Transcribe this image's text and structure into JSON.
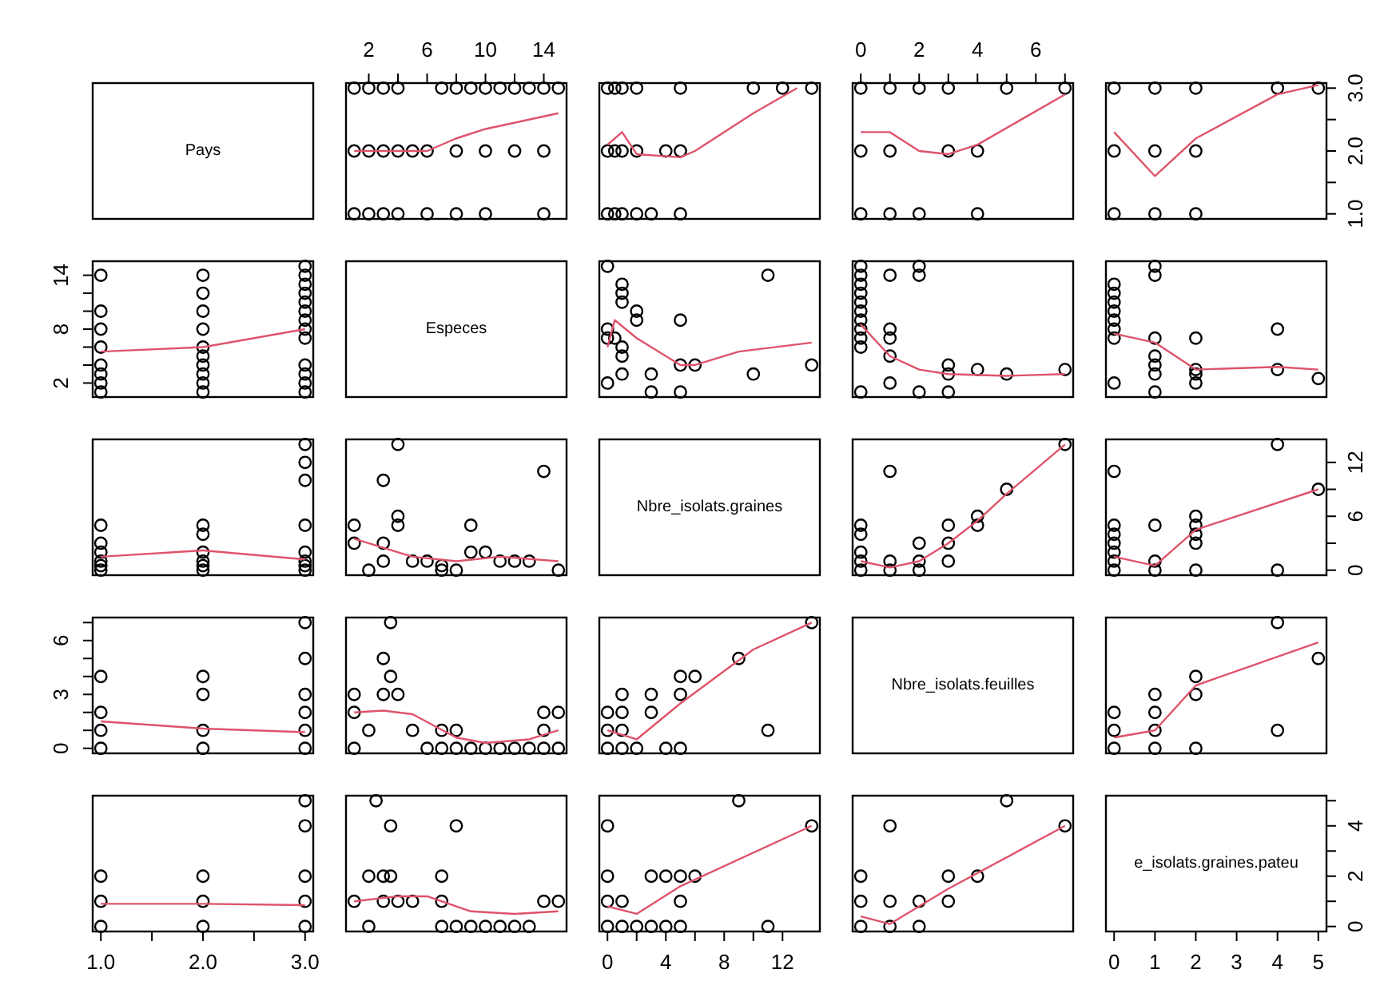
{
  "chart_data": [
    {
      "type": "other",
      "title": "Pays"
    },
    {
      "type": "scatter",
      "xlim": [
        0.44,
        15.56
      ],
      "ylim": [
        0.92,
        3.08
      ],
      "tick_labels": "x",
      "xticks": [
        2,
        {
          "value": 4,
          "label": null
        },
        6,
        {
          "value": 8,
          "label": null
        },
        10,
        {
          "value": 12,
          "label": null
        },
        14
      ],
      "series": [
        {
          "type": "scatter",
          "marker": "circle",
          "color": "#000000",
          "x": [
            1,
            2,
            3,
            4,
            7,
            8,
            9,
            10,
            11,
            12,
            13,
            14,
            15,
            1,
            2,
            3,
            4,
            5,
            6,
            8,
            10,
            12,
            14,
            1,
            2,
            3,
            4,
            6,
            8,
            10,
            14
          ],
          "values": [
            3,
            3,
            3,
            3,
            3,
            3,
            3,
            3,
            3,
            3,
            3,
            3,
            3,
            2,
            2,
            2,
            2,
            2,
            2,
            2,
            2,
            2,
            2,
            1,
            1,
            1,
            1,
            1,
            1,
            1,
            1
          ]
        },
        {
          "type": "line",
          "color": "#df536b",
          "x": [
            1,
            6,
            8,
            10,
            15
          ],
          "values": [
            2.0,
            2.0,
            2.2,
            2.35,
            2.6
          ]
        }
      ]
    },
    {
      "type": "scatter",
      "xlim": [
        -0.56,
        14.56
      ],
      "ylim": [
        0.92,
        3.08
      ],
      "tick_labels": false,
      "series": [
        {
          "type": "scatter",
          "marker": "circle",
          "color": "#000000",
          "x": [
            0,
            0.5,
            1,
            2,
            5,
            10,
            12,
            14,
            0,
            0.5,
            1,
            2,
            4,
            5,
            0,
            0.5,
            1,
            2,
            3,
            5
          ],
          "values": [
            3,
            3,
            3,
            3,
            3,
            3,
            3,
            3,
            2,
            2,
            2,
            2,
            2,
            2,
            1,
            1,
            1,
            1,
            1,
            1
          ]
        },
        {
          "type": "line",
          "color": "#df536b",
          "x": [
            0,
            1,
            2,
            5,
            6,
            10,
            13
          ],
          "values": [
            2.1,
            2.3,
            1.95,
            1.9,
            2.0,
            2.6,
            3.0
          ]
        }
      ]
    },
    {
      "type": "scatter",
      "xlim": [
        -0.28,
        7.28
      ],
      "ylim": [
        0.92,
        3.08
      ],
      "tick_labels": "x",
      "xticks": [
        0,
        {
          "value": 1,
          "label": null
        },
        2,
        {
          "value": 3,
          "label": null
        },
        4,
        {
          "value": 5,
          "label": null
        },
        6,
        {
          "value": 7,
          "label": null
        }
      ],
      "series": [
        {
          "type": "scatter",
          "marker": "circle",
          "color": "#000000",
          "x": [
            0,
            1,
            2,
            3,
            5,
            7,
            0,
            1,
            3,
            4,
            0,
            1,
            2,
            4
          ],
          "values": [
            3,
            3,
            3,
            3,
            3,
            3,
            2,
            2,
            2,
            2,
            1,
            1,
            1,
            1
          ]
        },
        {
          "type": "line",
          "color": "#df536b",
          "x": [
            0,
            1,
            2,
            3,
            4,
            7
          ],
          "values": [
            2.3,
            2.3,
            2.0,
            1.95,
            2.1,
            2.9
          ]
        }
      ]
    },
    {
      "type": "scatter",
      "xlim": [
        -0.2,
        5.2
      ],
      "ylim": [
        0.92,
        3.08
      ],
      "tick_labels": "y",
      "yticks": [
        {
          "value": 1,
          "label": "1.0"
        },
        {
          "value": 1.5,
          "label": null
        },
        {
          "value": 2,
          "label": "2.0"
        },
        {
          "value": 2.5,
          "label": null
        },
        {
          "value": 3,
          "label": "3.0"
        }
      ],
      "series": [
        {
          "type": "scatter",
          "marker": "circle",
          "color": "#000000",
          "x": [
            0,
            1,
            2,
            4,
            5,
            0,
            1,
            2,
            0,
            1,
            2
          ],
          "values": [
            3,
            3,
            3,
            3,
            3,
            2,
            2,
            2,
            1,
            1,
            1
          ]
        },
        {
          "type": "line",
          "color": "#df536b",
          "x": [
            0,
            1,
            2,
            4,
            5
          ],
          "values": [
            2.3,
            1.6,
            2.2,
            2.9,
            3.05
          ]
        }
      ]
    },
    {
      "type": "scatter",
      "xlim": [
        0.92,
        3.08
      ],
      "ylim": [
        0.44,
        15.56
      ],
      "tick_labels": "y",
      "yticks": [
        2,
        {
          "value": 4,
          "label": null
        },
        {
          "value": 6,
          "label": null
        },
        8,
        {
          "value": 10,
          "label": null
        },
        {
          "value": 12,
          "label": null
        },
        14
      ],
      "series": [
        {
          "type": "scatter",
          "marker": "circle",
          "color": "#000000",
          "x": [
            3,
            3,
            3,
            3,
            3,
            3,
            3,
            3,
            3,
            3,
            3,
            3,
            3,
            2,
            2,
            2,
            2,
            2,
            2,
            2,
            2,
            2,
            2,
            1,
            1,
            1,
            1,
            1,
            1,
            1,
            1
          ],
          "values": [
            1,
            2,
            3,
            4,
            7,
            8,
            9,
            10,
            11,
            12,
            13,
            14,
            15,
            1,
            2,
            3,
            4,
            5,
            6,
            8,
            10,
            12,
            14,
            1,
            2,
            3,
            4,
            6,
            8,
            10,
            14
          ]
        },
        {
          "type": "line",
          "color": "#df536b",
          "x": [
            1,
            2,
            3
          ],
          "values": [
            5.5,
            6,
            8
          ]
        }
      ]
    },
    {
      "type": "other",
      "title": "Especes"
    },
    {
      "type": "scatter",
      "xlim": [
        -0.56,
        14.56
      ],
      "ylim": [
        0.44,
        15.56
      ],
      "tick_labels": false,
      "series": [
        {
          "type": "scatter",
          "marker": "circle",
          "color": "#000000",
          "x": [
            0,
            0,
            0,
            0,
            0.5,
            1,
            1,
            1,
            1,
            1,
            1,
            2,
            2,
            3,
            3,
            5,
            5,
            5,
            6,
            10,
            11,
            14
          ],
          "values": [
            15,
            8,
            7,
            2,
            7,
            12,
            13,
            11,
            6,
            5,
            3,
            9,
            10,
            1,
            3,
            9,
            4,
            1,
            4,
            3,
            14,
            4
          ]
        },
        {
          "type": "line",
          "color": "#df536b",
          "x": [
            0,
            0.5,
            2,
            5,
            6,
            9,
            14
          ],
          "values": [
            6,
            9,
            7,
            4,
            4,
            5.5,
            6.5
          ]
        }
      ]
    },
    {
      "type": "scatter",
      "xlim": [
        -0.28,
        7.28
      ],
      "ylim": [
        0.44,
        15.56
      ],
      "tick_labels": false,
      "series": [
        {
          "type": "scatter",
          "marker": "circle",
          "color": "#000000",
          "x": [
            0,
            0,
            0,
            0,
            0,
            0,
            0,
            0,
            0,
            0,
            0,
            1,
            1,
            1,
            1,
            1,
            2,
            2,
            2,
            3,
            3,
            3,
            4,
            5,
            7
          ],
          "values": [
            15,
            14,
            13,
            12,
            11,
            10,
            9,
            8,
            7,
            6,
            1,
            14,
            8,
            7,
            5,
            2,
            15,
            14,
            1,
            4,
            3,
            1,
            3.5,
            3,
            3.5
          ]
        },
        {
          "type": "line",
          "color": "#df536b",
          "x": [
            0,
            1,
            2,
            3,
            5,
            7
          ],
          "values": [
            8.5,
            5,
            3.5,
            3,
            2.8,
            3
          ]
        }
      ]
    },
    {
      "type": "scatter",
      "xlim": [
        -0.2,
        5.2
      ],
      "ylim": [
        0.44,
        15.56
      ],
      "tick_labels": false,
      "series": [
        {
          "type": "scatter",
          "marker": "circle",
          "color": "#000000",
          "x": [
            0,
            0,
            0,
            0,
            0,
            0,
            0,
            0,
            1,
            1,
            1,
            1,
            1,
            1,
            1,
            2,
            2,
            2,
            2,
            4,
            4,
            5
          ],
          "values": [
            13,
            12,
            11,
            10,
            9,
            8,
            7,
            2,
            15,
            14,
            7,
            5,
            4,
            3,
            1,
            7,
            3.5,
            3,
            2,
            8,
            3.5,
            2.5
          ]
        },
        {
          "type": "line",
          "color": "#df536b",
          "x": [
            0,
            1,
            2,
            4,
            5
          ],
          "values": [
            7.5,
            6.5,
            3.5,
            3.8,
            3.5
          ]
        }
      ]
    },
    {
      "type": "scatter",
      "xlim": [
        0.92,
        3.08
      ],
      "ylim": [
        -0.56,
        14.56
      ],
      "tick_labels": false,
      "series": [
        {
          "type": "scatter",
          "marker": "circle",
          "color": "#000000",
          "x": [
            3,
            3,
            3,
            3,
            3,
            3,
            3,
            3,
            2,
            2,
            2,
            2,
            2,
            2,
            1,
            1,
            1,
            1,
            1,
            1
          ],
          "values": [
            0,
            0.5,
            1,
            2,
            5,
            10,
            12,
            14,
            0,
            0.5,
            1,
            2,
            4,
            5,
            0,
            0.5,
            1,
            2,
            3,
            5
          ]
        },
        {
          "type": "line",
          "color": "#df536b",
          "x": [
            1,
            2,
            3
          ],
          "values": [
            1.5,
            2.2,
            1.2
          ]
        }
      ]
    },
    {
      "type": "scatter",
      "xlim": [
        0.44,
        15.56
      ],
      "ylim": [
        -0.56,
        14.56
      ],
      "tick_labels": false,
      "series": [
        {
          "type": "scatter",
          "marker": "circle",
          "color": "#000000",
          "x": [
            15,
            8,
            7,
            2,
            7,
            12,
            13,
            11,
            6,
            5,
            3,
            9,
            10,
            1,
            3,
            9,
            4,
            1,
            4,
            3,
            14,
            4
          ],
          "values": [
            0,
            0,
            0,
            0,
            0.5,
            1,
            1,
            1,
            1,
            1,
            1,
            2,
            2,
            3,
            3,
            5,
            5,
            5,
            6,
            10,
            11,
            14
          ]
        },
        {
          "type": "line",
          "color": "#df536b",
          "x": [
            1,
            3,
            5,
            8,
            11,
            15
          ],
          "values": [
            3.5,
            2.5,
            1.5,
            1,
            1.5,
            1
          ]
        }
      ]
    },
    {
      "type": "other",
      "title": "Nbre_isolats.graines"
    },
    {
      "type": "scatter",
      "xlim": [
        -0.28,
        7.28
      ],
      "ylim": [
        -0.56,
        14.56
      ],
      "tick_labels": false,
      "series": [
        {
          "type": "scatter",
          "marker": "circle",
          "color": "#000000",
          "x": [
            0,
            0,
            0,
            0,
            0,
            1,
            1,
            1,
            2,
            2,
            2,
            3,
            3,
            3,
            4,
            4,
            5,
            7
          ],
          "values": [
            5,
            4,
            2,
            1,
            0,
            11,
            1,
            0,
            3,
            1,
            0,
            5,
            3,
            1,
            6,
            5,
            9,
            14
          ]
        },
        {
          "type": "line",
          "color": "#df536b",
          "x": [
            0,
            1,
            2,
            3,
            4,
            5,
            7
          ],
          "values": [
            1,
            0.3,
            1,
            3,
            5.5,
            8.5,
            14
          ]
        }
      ]
    },
    {
      "type": "scatter",
      "xlim": [
        -0.2,
        5.2
      ],
      "ylim": [
        -0.56,
        14.56
      ],
      "tick_labels": "y",
      "yticks": [
        0,
        {
          "value": 3,
          "label": null
        },
        6,
        {
          "value": 9,
          "label": null
        },
        12
      ],
      "series": [
        {
          "type": "scatter",
          "marker": "circle",
          "color": "#000000",
          "x": [
            0,
            0,
            0,
            0,
            0,
            0,
            0,
            1,
            1,
            1,
            2,
            2,
            2,
            2,
            2,
            4,
            4,
            5
          ],
          "values": [
            11,
            5,
            4,
            3,
            2,
            1,
            0,
            5,
            1,
            0,
            6,
            5,
            4,
            3,
            0,
            14,
            0,
            9
          ]
        },
        {
          "type": "line",
          "color": "#df536b",
          "x": [
            0,
            1,
            2,
            5
          ],
          "values": [
            1.5,
            0.5,
            4.5,
            9
          ]
        }
      ]
    },
    {
      "type": "scatter",
      "xlim": [
        0.92,
        3.08
      ],
      "ylim": [
        -0.28,
        7.28
      ],
      "tick_labels": "y",
      "yticks": [
        0,
        {
          "value": 1,
          "label": null
        },
        {
          "value": 2,
          "label": null
        },
        3,
        {
          "value": 4,
          "label": null
        },
        {
          "value": 5,
          "label": null
        },
        6,
        {
          "value": 7,
          "label": null
        }
      ],
      "series": [
        {
          "type": "scatter",
          "marker": "circle",
          "color": "#000000",
          "x": [
            3,
            3,
            3,
            3,
            3,
            3,
            2,
            2,
            2,
            2,
            1,
            1,
            1,
            1
          ],
          "values": [
            0,
            1,
            2,
            3,
            5,
            7,
            0,
            1,
            3,
            4,
            0,
            1,
            2,
            4
          ]
        },
        {
          "type": "line",
          "color": "#df536b",
          "x": [
            1,
            2,
            3
          ],
          "values": [
            1.5,
            1.1,
            0.9
          ]
        }
      ]
    },
    {
      "type": "scatter",
      "xlim": [
        0.44,
        15.56
      ],
      "ylim": [
        -0.28,
        7.28
      ],
      "tick_labels": false,
      "series": [
        {
          "type": "scatter",
          "marker": "circle",
          "color": "#000000",
          "x": [
            15,
            14,
            13,
            12,
            11,
            10,
            9,
            8,
            7,
            6,
            1,
            14,
            8,
            7,
            5,
            2,
            15,
            14,
            1,
            4,
            3,
            1,
            3.5,
            3,
            3.5
          ],
          "values": [
            0,
            0,
            0,
            0,
            0,
            0,
            0,
            0,
            0,
            0,
            0,
            1,
            1,
            1,
            1,
            1,
            2,
            2,
            2,
            3,
            3,
            3,
            4,
            5,
            7
          ]
        },
        {
          "type": "line",
          "color": "#df536b",
          "x": [
            1,
            3,
            5,
            8,
            10,
            13,
            15
          ],
          "values": [
            2,
            2.1,
            1.9,
            0.6,
            0.3,
            0.5,
            1
          ]
        }
      ]
    },
    {
      "type": "scatter",
      "xlim": [
        -0.56,
        14.56
      ],
      "ylim": [
        -0.28,
        7.28
      ],
      "tick_labels": false,
      "series": [
        {
          "type": "scatter",
          "marker": "circle",
          "color": "#000000",
          "x": [
            5,
            4,
            2,
            1,
            0,
            11,
            1,
            0,
            3,
            1,
            0,
            5,
            3,
            1,
            6,
            5,
            9,
            14
          ],
          "values": [
            0,
            0,
            0,
            0,
            0,
            1,
            1,
            1,
            2,
            2,
            2,
            3,
            3,
            3,
            4,
            4,
            5,
            7
          ]
        },
        {
          "type": "line",
          "color": "#df536b",
          "x": [
            0,
            2,
            5,
            10,
            14
          ],
          "values": [
            1,
            0.5,
            2.5,
            5.5,
            7
          ]
        }
      ]
    },
    {
      "type": "other",
      "title": "Nbre_isolats.feuilles"
    },
    {
      "type": "scatter",
      "xlim": [
        -0.2,
        5.2
      ],
      "ylim": [
        -0.28,
        7.28
      ],
      "tick_labels": false,
      "series": [
        {
          "type": "scatter",
          "marker": "circle",
          "color": "#000000",
          "x": [
            0,
            0,
            0,
            1,
            1,
            1,
            1,
            2,
            2,
            2,
            4,
            4,
            5
          ],
          "values": [
            2,
            1,
            0,
            3,
            2,
            1,
            0,
            4,
            3,
            0,
            7,
            1,
            5
          ]
        },
        {
          "type": "line",
          "color": "#df536b",
          "x": [
            0,
            1,
            2,
            5
          ],
          "values": [
            0.6,
            1,
            3.5,
            5.9
          ]
        }
      ]
    },
    {
      "type": "scatter",
      "xlim": [
        0.92,
        3.08
      ],
      "ylim": [
        -0.2,
        5.2
      ],
      "tick_labels": "x",
      "xticks": [
        {
          "value": 1,
          "label": "1.0"
        },
        {
          "value": 1.5,
          "label": null
        },
        {
          "value": 2,
          "label": "2.0"
        },
        {
          "value": 2.5,
          "label": null
        },
        {
          "value": 3,
          "label": "3.0"
        }
      ],
      "series": [
        {
          "type": "scatter",
          "marker": "circle",
          "color": "#000000",
          "x": [
            3,
            3,
            3,
            3,
            3,
            2,
            2,
            2,
            1,
            1,
            1
          ],
          "values": [
            0,
            1,
            2,
            4,
            5,
            0,
            1,
            2,
            0,
            1,
            2
          ]
        },
        {
          "type": "line",
          "color": "#df536b",
          "x": [
            1,
            2,
            3
          ],
          "values": [
            0.9,
            0.9,
            0.85
          ]
        }
      ]
    },
    {
      "type": "scatter",
      "xlim": [
        0.44,
        15.56
      ],
      "ylim": [
        -0.2,
        5.2
      ],
      "tick_labels": false,
      "series": [
        {
          "type": "scatter",
          "marker": "circle",
          "color": "#000000",
          "x": [
            13,
            12,
            11,
            10,
            9,
            8,
            7,
            2,
            15,
            14,
            7,
            5,
            4,
            3,
            1,
            7,
            3.5,
            3,
            2,
            8,
            3.5,
            2.5
          ],
          "values": [
            0,
            0,
            0,
            0,
            0,
            0,
            0,
            0,
            1,
            1,
            1,
            1,
            1,
            1,
            1,
            2,
            2,
            2,
            2,
            4,
            4,
            5
          ]
        },
        {
          "type": "line",
          "color": "#df536b",
          "x": [
            1,
            4,
            6,
            9,
            12,
            15
          ],
          "values": [
            1,
            1.2,
            1.2,
            0.6,
            0.5,
            0.6
          ]
        }
      ]
    },
    {
      "type": "scatter",
      "xlim": [
        -0.56,
        14.56
      ],
      "ylim": [
        -0.2,
        5.2
      ],
      "tick_labels": "x",
      "xticks": [
        0,
        {
          "value": 2,
          "label": null
        },
        4,
        {
          "value": 6,
          "label": null
        },
        8,
        {
          "value": 10,
          "label": null
        },
        12
      ],
      "series": [
        {
          "type": "scatter",
          "marker": "circle",
          "color": "#000000",
          "x": [
            11,
            5,
            4,
            3,
            2,
            1,
            0,
            5,
            1,
            0,
            6,
            5,
            4,
            3,
            0,
            14,
            0,
            9
          ],
          "values": [
            0,
            0,
            0,
            0,
            0,
            0,
            0,
            1,
            1,
            1,
            2,
            2,
            2,
            2,
            2,
            4,
            4,
            5
          ]
        },
        {
          "type": "line",
          "color": "#df536b",
          "x": [
            0,
            2,
            5,
            14
          ],
          "values": [
            0.8,
            0.5,
            1.6,
            4
          ]
        }
      ]
    },
    {
      "type": "scatter",
      "xlim": [
        -0.28,
        7.28
      ],
      "ylim": [
        -0.2,
        5.2
      ],
      "tick_labels": false,
      "series": [
        {
          "type": "scatter",
          "marker": "circle",
          "color": "#000000",
          "x": [
            2,
            1,
            0,
            3,
            2,
            1,
            0,
            4,
            3,
            0,
            7,
            1,
            5
          ],
          "values": [
            0,
            0,
            0,
            1,
            1,
            1,
            1,
            2,
            2,
            2,
            4,
            4,
            5
          ]
        },
        {
          "type": "line",
          "color": "#df536b",
          "x": [
            0,
            1,
            3,
            7
          ],
          "values": [
            0.4,
            0.1,
            1.5,
            4
          ]
        }
      ]
    },
    {
      "type": "scatter",
      "title": "e_isolats.graines.pateu",
      "xlim": [
        -0.2,
        5.2
      ],
      "ylim": [
        -0.2,
        5.2
      ],
      "xticks": [
        0,
        1,
        2,
        3,
        4,
        5
      ],
      "yticks": [
        0,
        {
          "value": 1,
          "label": null
        },
        2,
        {
          "value": 3,
          "label": null
        },
        4,
        {
          "value": 5,
          "label": null
        }
      ]
    }
  ]
}
